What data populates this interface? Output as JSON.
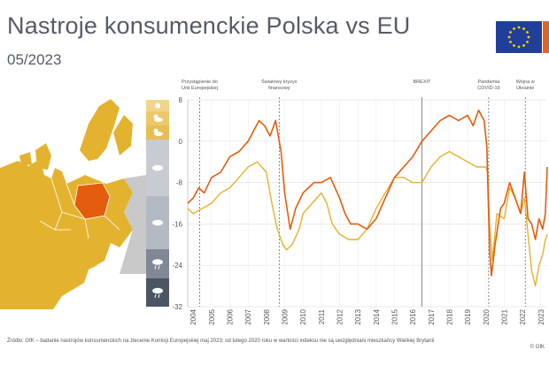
{
  "title": "Nastroje konsumenckie Polska vs EU",
  "subtitle": "05/2023",
  "footer": "Źródło: GfK – badanie nastrojów konsumenckich na zlecenie Komisji Europejskiej maj 2023; od lutego 2020 roku w wartości indeksu nie są uwzględniani mieszkańcy Wielkiej Brytanii",
  "copyright": "© GfK",
  "colors": {
    "poland": "#e35d0c",
    "eu": "#e6b12b",
    "map_land": "#e3b330",
    "map_poland": "#e35d0c",
    "map_other": "#c9c9c9",
    "scale": [
      "#f1d58a",
      "#ecc869",
      "#e6be52",
      "#c8ccd2",
      "#b4bac2",
      "#7f8894",
      "#4b5563"
    ]
  },
  "legend_icons": [
    "sun-icon",
    "sun-cloud-icon",
    "sun-cloud-icon",
    "cloud-icon",
    "cloud-icon",
    "rain-cloud-icon",
    "rain-cloud-icon"
  ],
  "annotations": [
    {
      "year": 2004.35,
      "label": [
        "Przystąpienie do",
        "Unii Europejskiej"
      ],
      "dashed": true
    },
    {
      "year": 2008.7,
      "label": [
        "Światowy kryzys",
        "finansowy"
      ],
      "dashed": true
    },
    {
      "year": 2016.5,
      "label": [
        "BREXIT"
      ],
      "dashed": false
    },
    {
      "year": 2020.15,
      "label": [
        "Pandemia",
        "COVID-19"
      ],
      "dashed": true
    },
    {
      "year": 2022.15,
      "label": [
        "Wojna w",
        "Ukrainie"
      ],
      "dashed": true
    }
  ],
  "chart_data": {
    "type": "line",
    "title": "Nastroje konsumenckie Polska vs EU",
    "xlabel": "",
    "ylabel": "",
    "xlim": [
      2003.7,
      2023.35
    ],
    "ylim": [
      -32,
      8
    ],
    "yticks": [
      8,
      0,
      -8,
      -16,
      -24,
      -32
    ],
    "xticks": [
      "2004",
      "2005",
      "2006",
      "2007",
      "2008",
      "2009",
      "2010",
      "2011",
      "2012",
      "2013",
      "2014",
      "2015",
      "2016",
      "2017",
      "2018",
      "2019",
      "2020",
      "2021",
      "2022",
      "2023"
    ],
    "series": [
      {
        "name": "Polska",
        "x": [
          2003.7,
          2004,
          2004.3,
          2004.6,
          2005,
          2005.5,
          2006,
          2006.5,
          2007,
          2007.3,
          2007.6,
          2007.9,
          2008.2,
          2008.5,
          2008.8,
          2009.0,
          2009.3,
          2009.6,
          2010,
          2010.3,
          2010.6,
          2011,
          2011.5,
          2012,
          2012.3,
          2012.6,
          2013,
          2013.5,
          2014,
          2014.5,
          2015,
          2015.5,
          2016,
          2016.5,
          2017,
          2017.5,
          2018,
          2018.5,
          2019,
          2019.3,
          2019.6,
          2019.9,
          2020.05,
          2020.2,
          2020.3,
          2020.5,
          2020.8,
          2021,
          2021.3,
          2021.6,
          2021.9,
          2022.1,
          2022.3,
          2022.5,
          2022.7,
          2022.9,
          2023.1,
          2023.25,
          2023.35
        ],
        "values": [
          -12,
          -11,
          -9,
          -10,
          -7,
          -6,
          -3,
          -2,
          0,
          2,
          4,
          3,
          1,
          4,
          -2,
          -10,
          -17,
          -13,
          -10,
          -9,
          -8,
          -8,
          -7,
          -11,
          -14,
          -16,
          -16,
          -17,
          -15,
          -11,
          -7,
          -5,
          -3,
          0,
          2,
          4,
          5,
          4,
          5,
          3,
          6,
          4,
          -1,
          -21,
          -26,
          -20,
          -13,
          -12,
          -8,
          -11,
          -14,
          -6,
          -15,
          -16,
          -19,
          -15,
          -17,
          -14,
          -5
        ]
      },
      {
        "name": "EU",
        "x": [
          2003.7,
          2004,
          2004.5,
          2005,
          2005.5,
          2006,
          2006.5,
          2007,
          2007.5,
          2008,
          2008.3,
          2008.6,
          2008.9,
          2009.1,
          2009.4,
          2009.8,
          2010,
          2010.5,
          2011,
          2011.3,
          2011.6,
          2012,
          2012.5,
          2013,
          2013.5,
          2014,
          2014.5,
          2015,
          2015.5,
          2016,
          2016.5,
          2017,
          2017.5,
          2018,
          2018.5,
          2019,
          2019.5,
          2020,
          2020.1,
          2020.2,
          2020.35,
          2020.6,
          2021,
          2021.3,
          2021.6,
          2021.9,
          2022.1,
          2022.3,
          2022.5,
          2022.7,
          2022.9,
          2023.1,
          2023.25,
          2023.35
        ],
        "values": [
          -13,
          -14,
          -13,
          -12,
          -10,
          -9,
          -7,
          -5,
          -4,
          -6,
          -12,
          -17,
          -20,
          -21,
          -20,
          -17,
          -14,
          -12,
          -10,
          -12,
          -16,
          -18,
          -19,
          -19,
          -17,
          -13,
          -10,
          -7,
          -7,
          -8,
          -8,
          -5,
          -3,
          -2,
          -3,
          -4,
          -5,
          -5,
          -6,
          -16,
          -23,
          -14,
          -15,
          -9,
          -11,
          -14,
          -11,
          -18,
          -25,
          -28,
          -24,
          -22,
          -19,
          -18
        ]
      }
    ]
  }
}
